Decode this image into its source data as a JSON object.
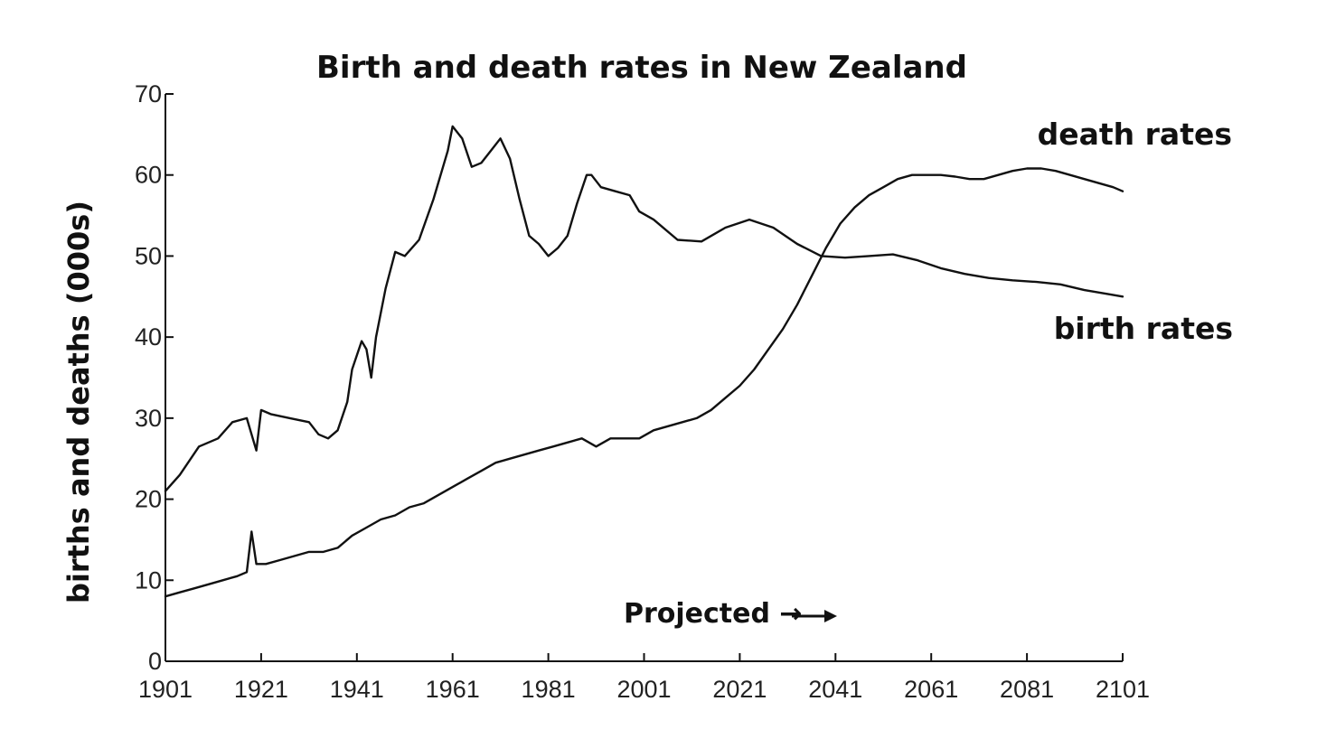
{
  "chart_data": {
    "type": "line",
    "title": "Birth and death rates in New Zealand",
    "xlabel": "",
    "ylabel": "births and deaths (000s)",
    "xlim": [
      1901,
      2101
    ],
    "ylim": [
      0,
      70
    ],
    "x_ticks": [
      "1901",
      "1921",
      "1941",
      "1961",
      "1981",
      "2001",
      "2021",
      "2041",
      "2061",
      "2081",
      "2101"
    ],
    "y_ticks": [
      "0",
      "10",
      "20",
      "30",
      "40",
      "50",
      "60",
      "70"
    ],
    "annotation": "Projected →",
    "grid": false,
    "legend": "none",
    "series": [
      {
        "name": "birth rates",
        "x": [
          1901,
          1904,
          1908,
          1912,
          1915,
          1918,
          1919,
          1920,
          1921,
          1923,
          1927,
          1931,
          1933,
          1935,
          1937,
          1939,
          1940,
          1942,
          1943,
          1944,
          1945,
          1947,
          1949,
          1951,
          1954,
          1957,
          1960,
          1961,
          1963,
          1965,
          1967,
          1969,
          1971,
          1973,
          1975,
          1977,
          1979,
          1981,
          1983,
          1985,
          1987,
          1989,
          1990,
          1992,
          1995,
          1998,
          2000,
          2003,
          2008,
          2013,
          2018,
          2023,
          2028,
          2033,
          2038,
          2043,
          2048,
          2053,
          2058,
          2063,
          2068,
          2073,
          2078,
          2083,
          2088,
          2093,
          2098,
          2101
        ],
        "values": [
          21,
          23,
          26.5,
          27.5,
          29.5,
          30,
          28,
          26,
          31,
          30.5,
          30,
          29.5,
          28,
          27.5,
          28.5,
          32,
          36,
          39.5,
          38.5,
          35,
          40,
          46,
          50.5,
          50,
          52,
          57,
          63,
          66,
          64.5,
          61,
          61.5,
          63,
          64.5,
          62,
          57,
          52.5,
          51.5,
          50,
          51,
          52.5,
          56.5,
          60,
          60,
          58.5,
          58,
          57.5,
          55.5,
          54.5,
          52,
          51.8,
          53.5,
          54.5,
          53.5,
          51.5,
          50,
          49.8,
          50,
          50.2,
          49.5,
          48.5,
          47.8,
          47.3,
          47,
          46.8,
          46.5,
          45.8,
          45.3,
          45
        ]
      },
      {
        "name": "death rates",
        "x": [
          1901,
          1904,
          1907,
          1910,
          1913,
          1916,
          1918,
          1919,
          1920,
          1922,
          1925,
          1928,
          1931,
          1934,
          1937,
          1940,
          1943,
          1946,
          1949,
          1952,
          1955,
          1958,
          1961,
          1964,
          1967,
          1970,
          1973,
          1976,
          1979,
          1982,
          1985,
          1988,
          1991,
          1994,
          1997,
          2000,
          2003,
          2006,
          2009,
          2012,
          2015,
          2018,
          2021,
          2024,
          2027,
          2030,
          2033,
          2036,
          2039,
          2042,
          2045,
          2048,
          2051,
          2054,
          2057,
          2060,
          2063,
          2066,
          2069,
          2072,
          2075,
          2078,
          2081,
          2084,
          2087,
          2090,
          2093,
          2096,
          2099,
          2101
        ],
        "values": [
          8,
          8.5,
          9,
          9.5,
          10,
          10.5,
          11,
          16,
          12,
          12,
          12.5,
          13,
          13.5,
          13.5,
          14,
          15.5,
          16.5,
          17.5,
          18,
          19,
          19.5,
          20.5,
          21.5,
          22.5,
          23.5,
          24.5,
          25,
          25.5,
          26,
          26.5,
          27,
          27.5,
          26.5,
          27.5,
          27.5,
          27.5,
          28.5,
          29,
          29.5,
          30,
          31,
          32.5,
          34,
          36,
          38.5,
          41,
          44,
          47.5,
          51,
          54,
          56,
          57.5,
          58.5,
          59.5,
          60,
          60,
          60,
          59.8,
          59.5,
          59.5,
          60,
          60.5,
          60.8,
          60.8,
          60.5,
          60,
          59.5,
          59,
          58.5,
          58
        ]
      }
    ],
    "series_labels": [
      "death rates",
      "birth rates"
    ]
  }
}
